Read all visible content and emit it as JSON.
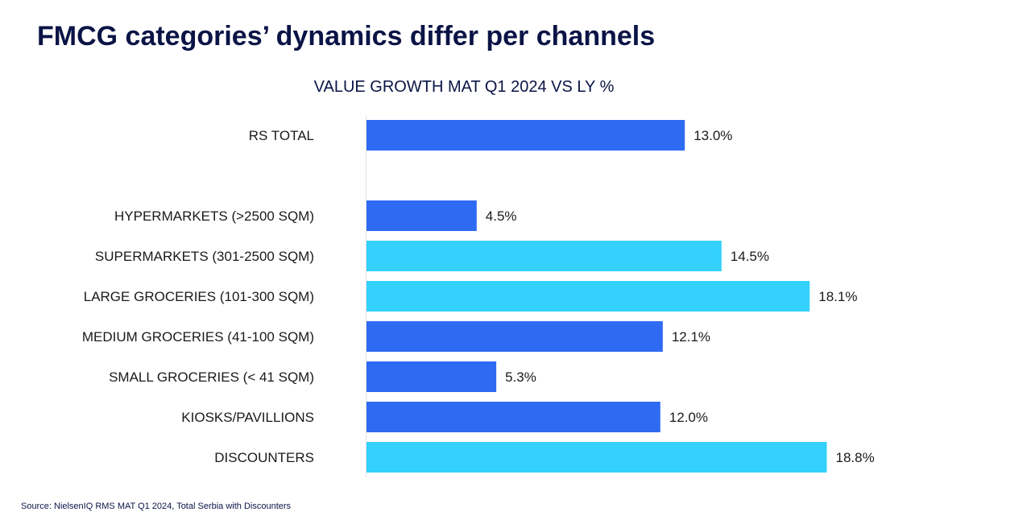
{
  "slide": {
    "title": "FMCG categories’ dynamics differ per channels",
    "source": "Source: NielsenIQ RMS MAT Q1 2024, Total Serbia with Discounters"
  },
  "chart_data": {
    "type": "bar",
    "orientation": "horizontal",
    "title": "VALUE GROWTH MAT Q1 2024 VS LY %",
    "xlabel": "",
    "ylabel": "",
    "categories": [
      "RS TOTAL",
      "HYPERMARKETS (>2500 SQM)",
      "SUPERMARKETS (301-2500 SQM)",
      "LARGE GROCERIES (101-300 SQM)",
      "MEDIUM GROCERIES (41-100 SQM)",
      "SMALL GROCERIES (< 41 SQM)",
      "KIOSKS/PAVILLIONS",
      "DISCOUNTERS"
    ],
    "values": [
      13.0,
      4.5,
      14.5,
      18.1,
      12.1,
      5.3,
      12.0,
      18.8
    ],
    "value_labels": [
      "13.0%",
      "4.5%",
      "14.5%",
      "18.1%",
      "12.1%",
      "5.3%",
      "12.0%",
      "18.8%"
    ],
    "colors": [
      "#2f6bf2",
      "#2f6bf2",
      "#33d1fb",
      "#33d1fb",
      "#2f6bf2",
      "#2f6bf2",
      "#2f6bf2",
      "#33d1fb"
    ],
    "xlim": [
      0,
      20
    ],
    "grid": false,
    "legend": "none"
  }
}
